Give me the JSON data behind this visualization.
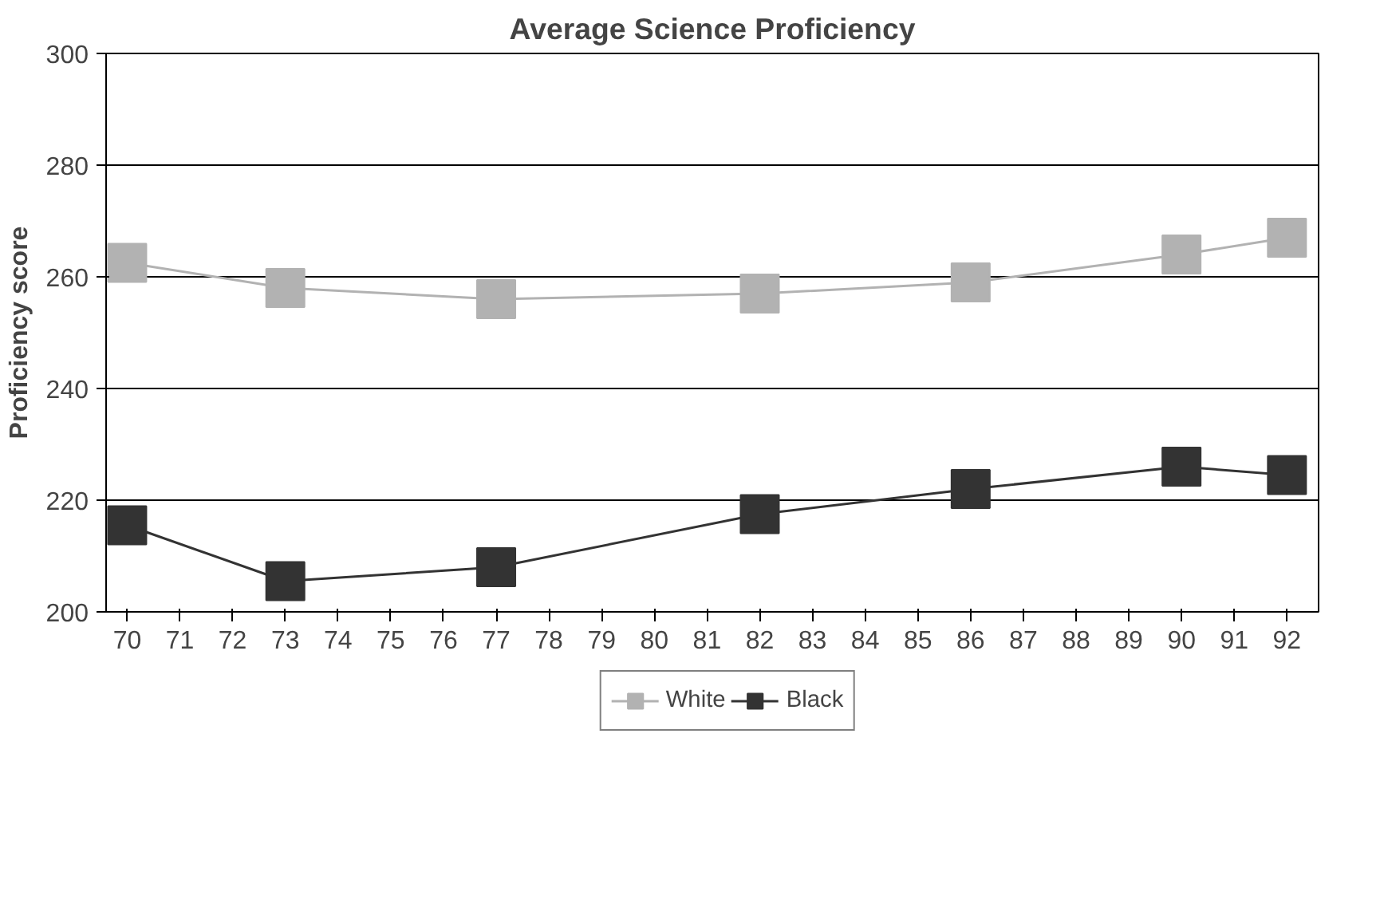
{
  "chart_data": {
    "type": "line",
    "title": "Average Science Proficiency",
    "ylabel": "Proficiency score",
    "x": [
      70,
      73,
      77,
      82,
      86,
      90,
      92
    ],
    "series": [
      {
        "name": "White",
        "color": "#b2b2b2",
        "values": [
          262.5,
          258,
          256,
          257,
          259,
          264,
          267
        ]
      },
      {
        "name": "Black",
        "color": "#333333",
        "values": [
          215.5,
          205.5,
          208,
          217.5,
          222,
          226,
          224.5
        ]
      }
    ],
    "xlim": [
      69.6,
      92.6
    ],
    "xticks": [
      70,
      71,
      72,
      73,
      74,
      75,
      76,
      77,
      78,
      79,
      80,
      81,
      82,
      83,
      84,
      85,
      86,
      87,
      88,
      89,
      90,
      91,
      92
    ],
    "ylim": [
      200,
      300
    ],
    "yticks": [
      200,
      220,
      240,
      260,
      280,
      300
    ],
    "grid": "y",
    "legend": "bottom",
    "marker": "square",
    "line_style": "solid"
  }
}
